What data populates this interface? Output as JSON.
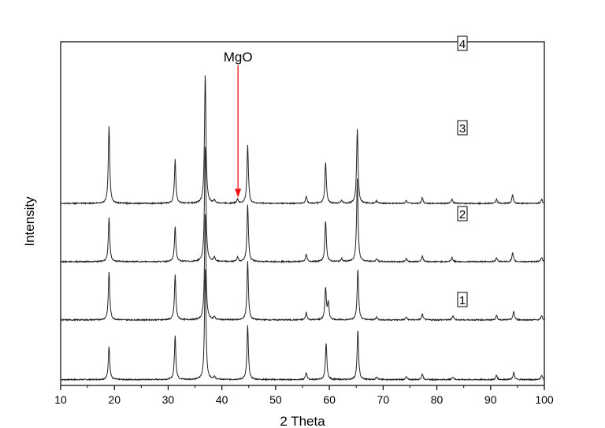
{
  "chart_data": {
    "type": "line",
    "title": "",
    "xlabel": "2 Theta",
    "ylabel": "Intensity",
    "xlim": [
      10,
      100
    ],
    "xticks": [
      "10",
      "20",
      "30",
      "40",
      "50",
      "60",
      "70",
      "80",
      "90",
      "100"
    ],
    "y_tick_labels": false,
    "grid": false,
    "legend": "none",
    "line_color": "#222222",
    "annotation": {
      "text": "MgO",
      "x": 43.0,
      "trace": "4",
      "arrow_color": "#ee1111"
    },
    "series": [
      {
        "name": "1",
        "baseline": 0.04,
        "peaks": [
          [
            19.0,
            0.23
          ],
          [
            31.3,
            0.3
          ],
          [
            36.9,
            0.77
          ],
          [
            38.6,
            0.02
          ],
          [
            44.8,
            0.37
          ],
          [
            55.7,
            0.05
          ],
          [
            59.4,
            0.25
          ],
          [
            65.3,
            0.34
          ],
          [
            68.8,
            0.02
          ],
          [
            74.3,
            0.02
          ],
          [
            77.3,
            0.04
          ],
          [
            83.0,
            0.02
          ],
          [
            91.1,
            0.03
          ],
          [
            94.3,
            0.05
          ],
          [
            99.5,
            0.03
          ]
        ]
      },
      {
        "name": "2",
        "baseline": 0.45,
        "peaks": [
          [
            19.0,
            0.33
          ],
          [
            31.3,
            0.31
          ],
          [
            36.9,
            0.74
          ],
          [
            38.6,
            0.02
          ],
          [
            44.8,
            0.4
          ],
          [
            55.7,
            0.05
          ],
          [
            59.3,
            0.22
          ],
          [
            59.8,
            0.11
          ],
          [
            65.3,
            0.35
          ],
          [
            68.8,
            0.02
          ],
          [
            74.3,
            0.02
          ],
          [
            77.3,
            0.04
          ],
          [
            83.0,
            0.03
          ],
          [
            91.1,
            0.03
          ],
          [
            94.3,
            0.06
          ],
          [
            99.5,
            0.03
          ]
        ]
      },
      {
        "name": "3",
        "baseline": 0.85,
        "peaks": [
          [
            19.0,
            0.3
          ],
          [
            31.3,
            0.24
          ],
          [
            36.9,
            0.8
          ],
          [
            38.6,
            0.03
          ],
          [
            42.9,
            0.03
          ],
          [
            44.8,
            0.39
          ],
          [
            55.7,
            0.05
          ],
          [
            59.3,
            0.28
          ],
          [
            62.3,
            0.02
          ],
          [
            65.2,
            0.57
          ],
          [
            68.8,
            0.02
          ],
          [
            74.3,
            0.02
          ],
          [
            77.3,
            0.04
          ],
          [
            82.8,
            0.03
          ],
          [
            91.1,
            0.03
          ],
          [
            94.1,
            0.06
          ],
          [
            99.5,
            0.03
          ]
        ]
      },
      {
        "name": "4",
        "baseline": 1.25,
        "peaks": [
          [
            19.0,
            0.53
          ],
          [
            31.3,
            0.3
          ],
          [
            36.9,
            0.89
          ],
          [
            38.6,
            0.02
          ],
          [
            42.9,
            0.03
          ],
          [
            44.8,
            0.4
          ],
          [
            55.7,
            0.05
          ],
          [
            59.3,
            0.28
          ],
          [
            62.3,
            0.02
          ],
          [
            65.2,
            0.51
          ],
          [
            68.8,
            0.02
          ],
          [
            74.3,
            0.02
          ],
          [
            77.3,
            0.04
          ],
          [
            82.8,
            0.03
          ],
          [
            91.1,
            0.03
          ],
          [
            94.1,
            0.06
          ],
          [
            99.5,
            0.03
          ]
        ]
      }
    ]
  }
}
